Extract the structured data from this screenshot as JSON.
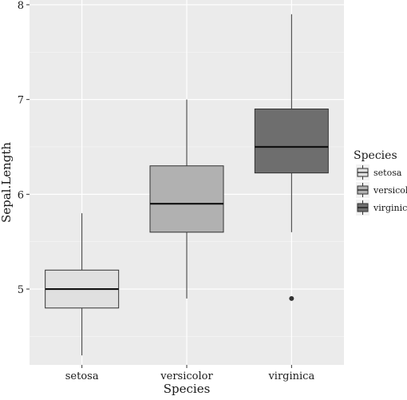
{
  "chart_data": {
    "type": "boxplot",
    "title": "",
    "xlabel": "Species",
    "ylabel": "Sepal.Length",
    "ylim": [
      4.2,
      8.05
    ],
    "yticks": [
      5,
      6,
      7,
      8
    ],
    "categories": [
      "setosa",
      "versicolor",
      "virginica"
    ],
    "boxes": [
      {
        "category": "setosa",
        "min": 4.3,
        "q1": 4.8,
        "median": 5.0,
        "q3": 5.2,
        "max": 5.8,
        "outliers": [],
        "color": "#e0e0e0"
      },
      {
        "category": "versicolor",
        "min": 4.9,
        "q1": 5.6,
        "median": 5.9,
        "q3": 6.3,
        "max": 7.0,
        "outliers": [],
        "color": "#b1b1b1"
      },
      {
        "category": "virginica",
        "min": 5.6,
        "q1": 6.225,
        "median": 6.5,
        "q3": 6.9,
        "max": 7.9,
        "outliers": [
          4.9
        ],
        "color": "#6e6e6e"
      }
    ],
    "grid": true,
    "legend": {
      "title": "Species",
      "placement": "right",
      "entries": [
        "setosa",
        "versicolor",
        "virginica"
      ]
    },
    "colors": {
      "panel": "#ebebeb",
      "grid_major": "#ffffff",
      "box_stroke": "#333333",
      "text": "#1a1a1a"
    }
  }
}
